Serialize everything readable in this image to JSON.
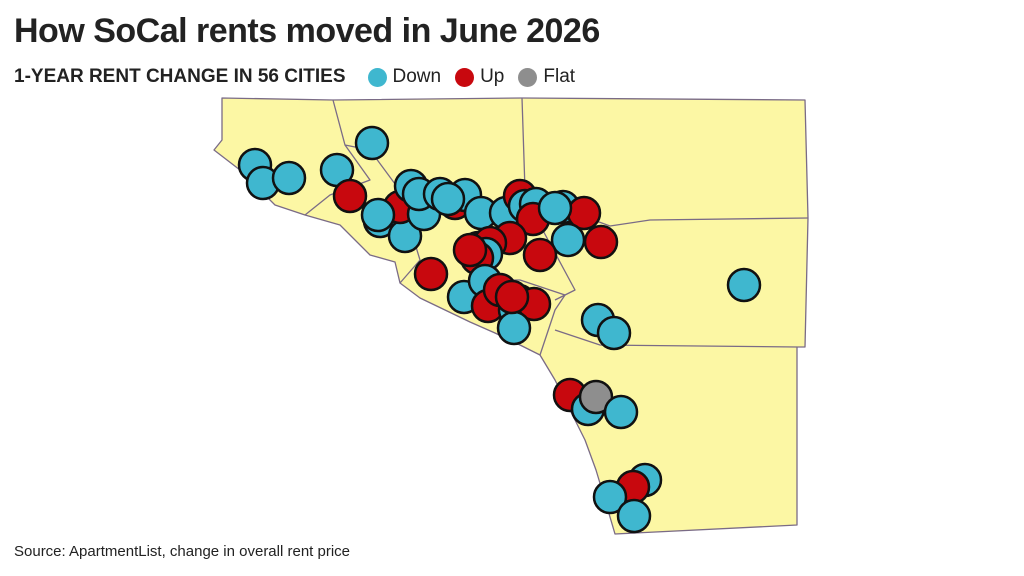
{
  "title": "How SoCal rents moved in June 2026",
  "subtitle": "1-YEAR RENT CHANGE IN 56 CITIES",
  "legend": [
    {
      "label": "Down",
      "color": "#3fb7cf"
    },
    {
      "label": "Up",
      "color": "#c8080e"
    },
    {
      "label": "Flat",
      "color": "#8e8e8e"
    }
  ],
  "source": "Source: ApartmentList, change in overall rent price",
  "colors": {
    "land": "#fcf7a4",
    "border": "#7a6b86",
    "marker_outline": "#111111"
  },
  "chart_data": {
    "type": "map",
    "region": "Southern California counties",
    "markers_drawn": 56,
    "marker_categories": [
      "Down",
      "Up",
      "Flat"
    ]
  }
}
